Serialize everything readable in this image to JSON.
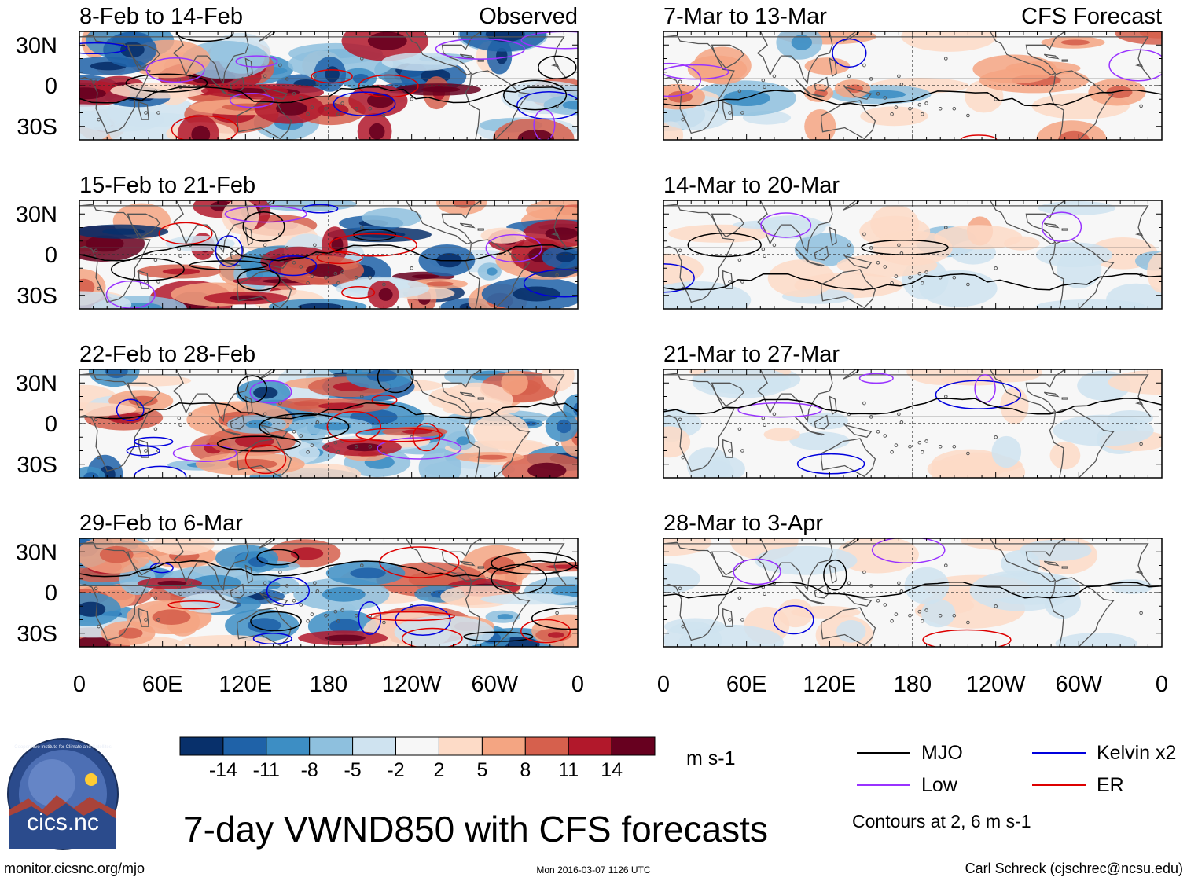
{
  "chart_data": {
    "type": "heatmap",
    "title": "7-day VWND850 with CFS forecasts",
    "variable": "VWND850",
    "units": "m s-1",
    "x_ticks": [
      "0",
      "60E",
      "120E",
      "180",
      "120W",
      "60W",
      "0"
    ],
    "y_ticks": [
      "30N",
      "0",
      "30S"
    ],
    "columns": [
      {
        "header": "Observed",
        "periods": [
          "8-Feb to 14-Feb",
          "15-Feb to 21-Feb",
          "22-Feb to 28-Feb",
          "29-Feb to 6-Mar"
        ]
      },
      {
        "header": "CFS Forecast",
        "periods": [
          "7-Mar to 13-Mar",
          "14-Mar to 20-Mar",
          "21-Mar to 27-Mar",
          "28-Mar to 3-Apr"
        ]
      }
    ],
    "colorbar": {
      "levels": [
        "-14",
        "-11",
        "-8",
        "-5",
        "-2",
        "2",
        "5",
        "8",
        "11",
        "14"
      ],
      "colors": [
        "#08306b",
        "#1f62a8",
        "#3d8ec4",
        "#8ec0de",
        "#cfe3f0",
        "#f7f7f7",
        "#fddbc7",
        "#f4a582",
        "#d6604d",
        "#b2182b",
        "#67001f"
      ]
    },
    "legend": [
      {
        "name": "MJO",
        "color": "#000000"
      },
      {
        "name": "Kelvin x2",
        "color": "#0000dd"
      },
      {
        "name": "Low",
        "color": "#9933ff"
      },
      {
        "name": "ER",
        "color": "#dd0000"
      }
    ],
    "contour_note": "Contours at 2, 6 m s-1"
  },
  "footer": {
    "logo_text": "cics.nc",
    "logo_ring_text": "Cooperative Institute for Climate and Satellites",
    "url": "monitor.cicsnc.org/mjo",
    "timestamp": "Mon 2016-03-07 1126 UTC",
    "author": "Carl Schreck (cjschrec@ncsu.edu)"
  }
}
